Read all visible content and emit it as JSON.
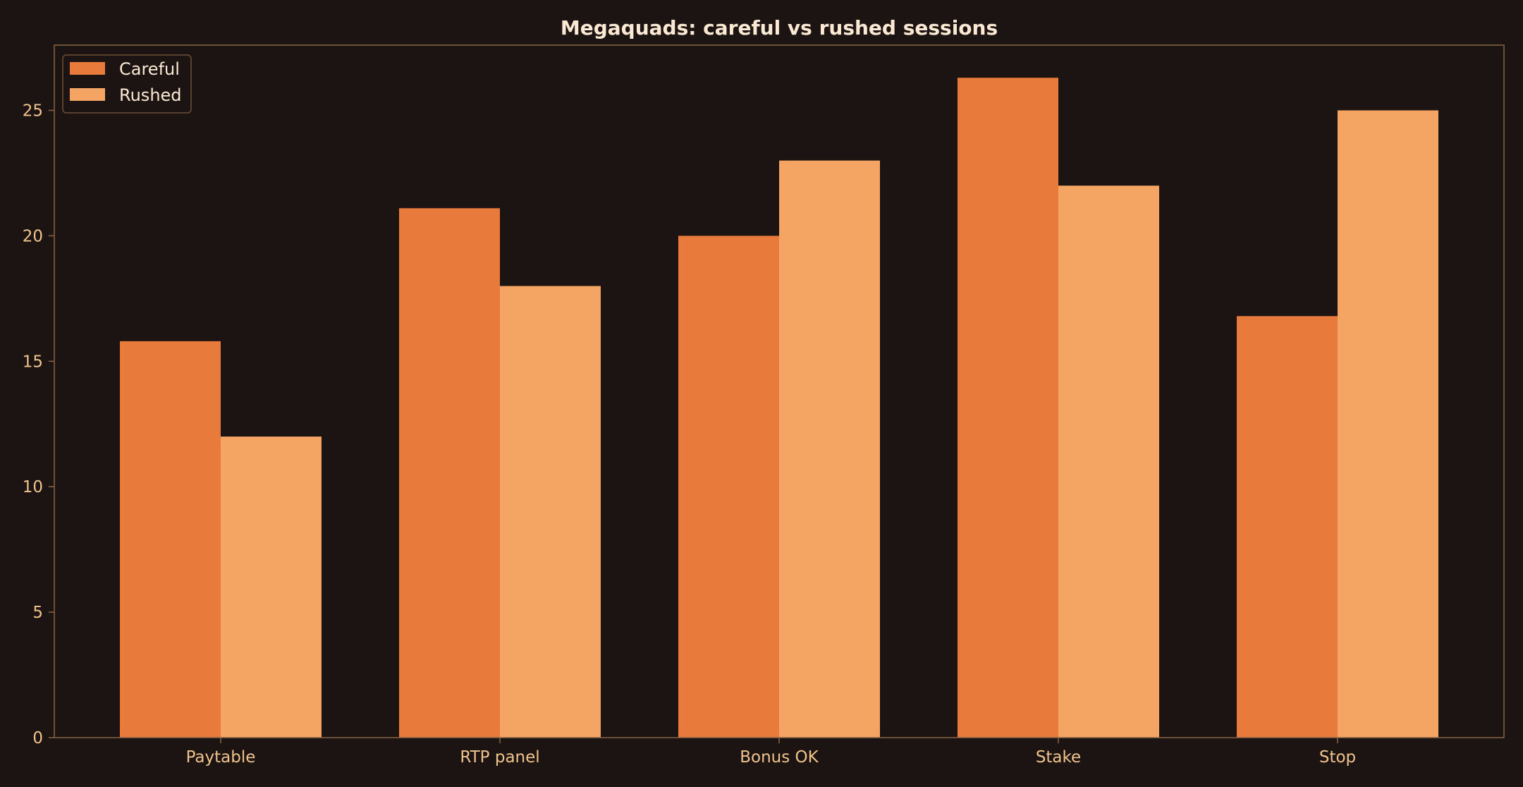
{
  "chart_data": {
    "type": "bar",
    "title": "Megaquads: careful vs rushed sessions",
    "xlabel": "",
    "ylabel": "",
    "categories": [
      "Paytable",
      "RTP panel",
      "Bonus OK",
      "Stake",
      "Stop"
    ],
    "series": [
      {
        "name": "Careful",
        "values": [
          15.8,
          21.1,
          20.0,
          26.3,
          16.8
        ],
        "color": "#e87b3c"
      },
      {
        "name": "Rushed",
        "values": [
          12.0,
          18.0,
          23.0,
          22.0,
          25.0
        ],
        "color": "#f4a564"
      }
    ],
    "ylim": [
      0,
      27.6
    ],
    "yticks": [
      0,
      5,
      10,
      15,
      20,
      25
    ],
    "grid": false,
    "legend_position": "top-left",
    "colors": {
      "background": "#1c1412",
      "axes_border": "#8a6446",
      "tick_label": "#f1c38c",
      "title": "#fbe9d4",
      "legend_frame": "#6b4e38"
    }
  }
}
